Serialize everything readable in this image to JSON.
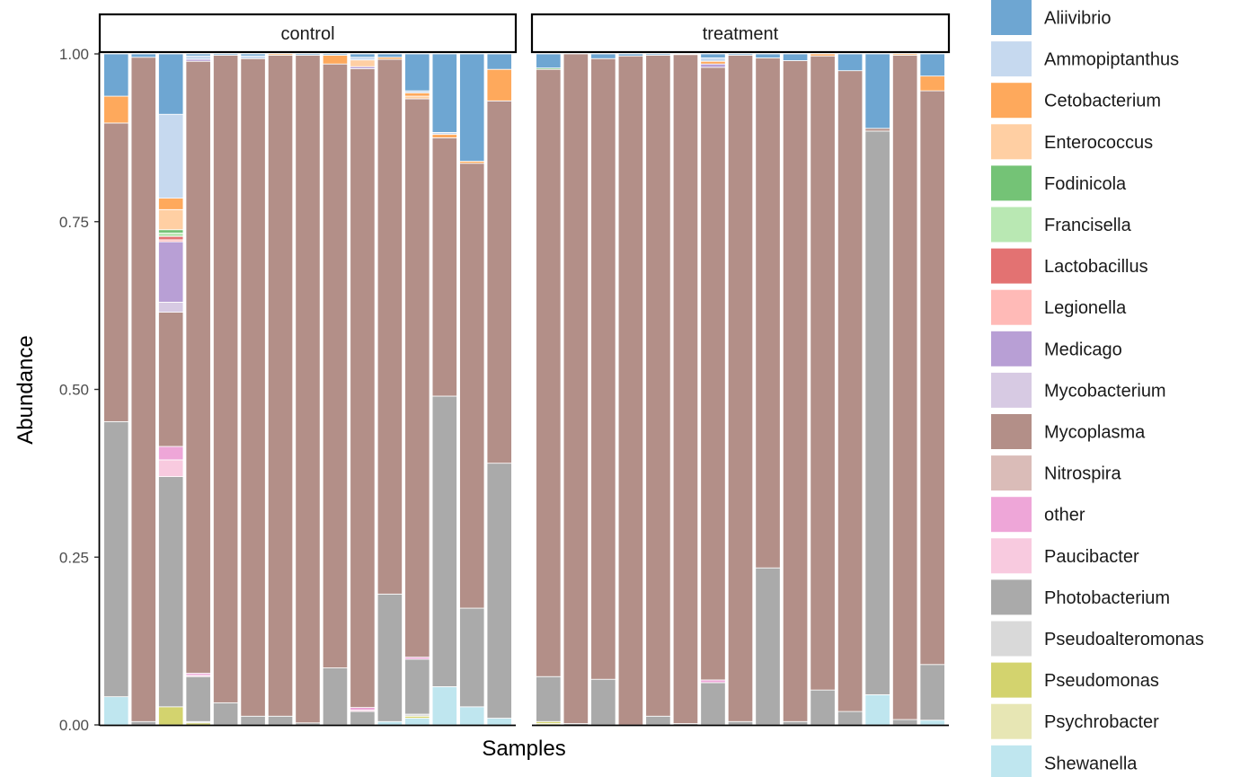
{
  "chart_data": {
    "type": "bar",
    "stacked": true,
    "xlabel": "Samples",
    "ylabel": "Abundance",
    "ylim": [
      0,
      1
    ],
    "yticks": [
      "0.00",
      "0.25",
      "0.50",
      "0.75",
      "1.00"
    ],
    "grid": false,
    "legend_position": "right",
    "stack_order_bottom_to_top": [
      "Shewanella",
      "Psychrobacter",
      "Pseudomonas",
      "Pseudoalteromonas",
      "Photobacterium",
      "Paucibacter",
      "other",
      "Nitrospira",
      "Mycoplasma",
      "Mycobacterium",
      "Medicago",
      "Legionella",
      "Lactobacillus",
      "Francisella",
      "Fodinicola",
      "Enterococcus",
      "Cetobacterium",
      "Ammopiptanthus",
      "Aliivibrio"
    ],
    "series": [
      {
        "name": "Aliivibrio",
        "color": "#6ea6d2"
      },
      {
        "name": "Ammopiptanthus",
        "color": "#c6d9ef"
      },
      {
        "name": "Cetobacterium",
        "color": "#fea95c"
      },
      {
        "name": "Enterococcus",
        "color": "#ffcfa3"
      },
      {
        "name": "Fodinicola",
        "color": "#74c376"
      },
      {
        "name": "Francisella",
        "color": "#b9e8b3"
      },
      {
        "name": "Lactobacillus",
        "color": "#e37272"
      },
      {
        "name": "Legionella",
        "color": "#ffbab7"
      },
      {
        "name": "Medicago",
        "color": "#b89fd5"
      },
      {
        "name": "Mycobacterium",
        "color": "#d7cae3"
      },
      {
        "name": "Mycoplasma",
        "color": "#b38f88"
      },
      {
        "name": "Nitrospira",
        "color": "#dabcb8"
      },
      {
        "name": "other",
        "color": "#eea6d8"
      },
      {
        "name": "Paucibacter",
        "color": "#f8cadf"
      },
      {
        "name": "Photobacterium",
        "color": "#aaaaaa"
      },
      {
        "name": "Pseudoalteromonas",
        "color": "#d9d9d9"
      },
      {
        "name": "Pseudomonas",
        "color": "#d3d36e"
      },
      {
        "name": "Psychrobacter",
        "color": "#e7e6b4"
      },
      {
        "name": "Shewanella",
        "color": "#bfe6ef"
      }
    ],
    "panels": [
      {
        "label": "control",
        "samples": [
          {
            "Shewanella": 0.042,
            "Photobacterium": 0.41,
            "Mycoplasma": 0.445,
            "Cetobacterium": 0.04,
            "Aliivibrio": 0.063
          },
          {
            "Photobacterium": 0.005,
            "Mycoplasma": 0.99,
            "Aliivibrio": 0.005
          },
          {
            "Pseudomonas": 0.027,
            "Photobacterium": 0.343,
            "Paucibacter": 0.025,
            "other": 0.02,
            "Mycoplasma": 0.2,
            "Mycobacterium": 0.015,
            "Medicago": 0.09,
            "Legionella": 0.003,
            "Lactobacillus": 0.005,
            "Francisella": 0.005,
            "Fodinicola": 0.005,
            "Enterococcus": 0.03,
            "Cetobacterium": 0.017,
            "Ammopiptanthus": 0.125,
            "Aliivibrio": 0.09
          },
          {
            "Pseudomonas": 0.003,
            "Photobacterium": 0.067,
            "other": 0.003,
            "Mycoplasma": 0.912,
            "Medicago": 0.003,
            "Paucibacter": 0.002,
            "Pseudoalteromonas": 0.002,
            "Ammopiptanthus": 0.005,
            "Aliivibrio": 0.003
          },
          {
            "Photobacterium": 0.033,
            "Mycoplasma": 0.965,
            "Aliivibrio": 0.002
          },
          {
            "Photobacterium": 0.013,
            "Mycoplasma": 0.98,
            "Ammopiptanthus": 0.004,
            "Aliivibrio": 0.003
          },
          {
            "Photobacterium": 0.013,
            "Mycoplasma": 0.985,
            "Cetobacterium": 0.002
          },
          {
            "Photobacterium": 0.003,
            "Mycoplasma": 0.995,
            "Aliivibrio": 0.002
          },
          {
            "Photobacterium": 0.085,
            "Mycoplasma": 0.9,
            "Cetobacterium": 0.013,
            "Aliivibrio": 0.002
          },
          {
            "Photobacterium": 0.02,
            "other": 0.004,
            "Paucibacter": 0.002,
            "Mycoplasma": 0.952,
            "Medicago": 0.003,
            "Enterococcus": 0.01,
            "Ammopiptanthus": 0.004,
            "Aliivibrio": 0.005
          },
          {
            "Shewanella": 0.005,
            "Photobacterium": 0.19,
            "Mycoplasma": 0.797,
            "Cetobacterium": 0.003,
            "Aliivibrio": 0.005
          },
          {
            "Shewanella": 0.01,
            "Pseudomonas": 0.003,
            "Photobacterium": 0.082,
            "other": 0.003,
            "Mycoplasma": 0.832,
            "Pseudoalteromonas": 0.003,
            "Cetobacterium": 0.005,
            "Enterococcus": 0.004,
            "Ammopiptanthus": 0.003,
            "Aliivibrio": 0.055
          },
          {
            "Shewanella": 0.057,
            "Photobacterium": 0.433,
            "Mycoplasma": 0.385,
            "Cetobacterium": 0.005,
            "Ammopiptanthus": 0.003,
            "Aliivibrio": 0.117
          },
          {
            "Shewanella": 0.027,
            "Photobacterium": 0.147,
            "Mycoplasma": 0.663,
            "Cetobacterium": 0.003,
            "Aliivibrio": 0.16
          },
          {
            "Shewanella": 0.01,
            "Photobacterium": 0.38,
            "Mycoplasma": 0.54,
            "Cetobacterium": 0.047,
            "Aliivibrio": 0.023
          }
        ]
      },
      {
        "label": "treatment",
        "samples": [
          {
            "Pseudomonas": 0.003,
            "Photobacterium": 0.067,
            "Mycoplasma": 0.905,
            "Psychrobacter": 0.002,
            "Fodinicola": 0.002,
            "Aliivibrio": 0.021
          },
          {
            "Photobacterium": 0.002,
            "Mycoplasma": 0.998
          },
          {
            "Photobacterium": 0.068,
            "Mycoplasma": 0.925,
            "Aliivibrio": 0.007
          },
          {
            "Mycoplasma": 0.997,
            "Aliivibrio": 0.003
          },
          {
            "Photobacterium": 0.013,
            "Mycoplasma": 0.985,
            "Aliivibrio": 0.002
          },
          {
            "Photobacterium": 0.002,
            "Mycoplasma": 0.997,
            "Aliivibrio": 0.001
          },
          {
            "Photobacterium": 0.063,
            "other": 0.004,
            "Mycoplasma": 0.913,
            "Medicago": 0.005,
            "Cetobacterium": 0.004,
            "Ammopiptanthus": 0.005,
            "Aliivibrio": 0.006
          },
          {
            "Photobacterium": 0.005,
            "Mycoplasma": 0.993,
            "Aliivibrio": 0.002
          },
          {
            "Photobacterium": 0.234,
            "Mycoplasma": 0.76,
            "Aliivibrio": 0.006
          },
          {
            "Photobacterium": 0.005,
            "Mycoplasma": 0.985,
            "Aliivibrio": 0.01
          },
          {
            "Photobacterium": 0.052,
            "Mycoplasma": 0.945,
            "Cetobacterium": 0.003
          },
          {
            "Photobacterium": 0.02,
            "Mycoplasma": 0.955,
            "Aliivibrio": 0.025
          },
          {
            "Shewanella": 0.045,
            "Photobacterium": 0.84,
            "Mycoplasma": 0.004,
            "Aliivibrio": 0.111
          },
          {
            "Photobacterium": 0.008,
            "Mycoplasma": 0.99,
            "Cetobacterium": 0.002
          },
          {
            "Shewanella": 0.007,
            "Photobacterium": 0.083,
            "Mycoplasma": 0.855,
            "Cetobacterium": 0.022,
            "Aliivibrio": 0.033
          }
        ]
      }
    ]
  }
}
